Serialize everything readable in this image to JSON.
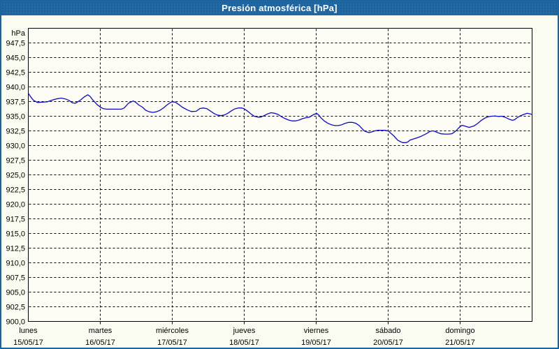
{
  "window": {
    "title": "Presión atmosférica [hPa]"
  },
  "colors": {
    "titlebar_bg": "#2069a5",
    "titlebar_text": "#ffffff",
    "window_border": "#1d649c",
    "content_bg": "#fbfcf1",
    "plot_bg": "#fdfdf6",
    "grid": "#000000",
    "axis": "#000000",
    "label_text": "#000000",
    "line": "#0a0acd"
  },
  "chart_data": {
    "type": "line",
    "title": "Presión atmosférica [hPa]",
    "ylabel": "hPa",
    "xlabel": "",
    "ylim": [
      900,
      950
    ],
    "ytick_step": 2.5,
    "ytick_labels": [
      "947,5",
      "945,0",
      "942,5",
      "940,0",
      "937,5",
      "935,0",
      "932,5",
      "930,0",
      "927,5",
      "925,0",
      "922,5",
      "920,0",
      "917,5",
      "915,0",
      "912,5",
      "910,0",
      "907,5",
      "905,0",
      "902,5",
      "900,0"
    ],
    "xlim_days": [
      0,
      7
    ],
    "grid": "dashed",
    "legend_position": "none",
    "x_categories": [
      {
        "day": "lunes",
        "date": "15/05/17"
      },
      {
        "day": "martes",
        "date": "16/05/17"
      },
      {
        "day": "miércoles",
        "date": "17/05/17"
      },
      {
        "day": "jueves",
        "date": "18/05/17"
      },
      {
        "day": "viernes",
        "date": "19/05/17"
      },
      {
        "day": "sábado",
        "date": "20/05/17"
      },
      {
        "day": "domingo",
        "date": "21/05/17"
      }
    ],
    "series": [
      {
        "name": "Presión atmosférica",
        "unit": "hPa",
        "color": "#0a0acd",
        "x_days": [
          0,
          0.034,
          0.068,
          0.126,
          0.194,
          0.263,
          0.321,
          0.389,
          0.457,
          0.515,
          0.564,
          0.613,
          0.651,
          0.681,
          0.729,
          0.778,
          0.826,
          0.856,
          0.894,
          0.924,
          0.953,
          1.001,
          1.04,
          1.089,
          1.167,
          1.293,
          1.332,
          1.361,
          1.39,
          1.429,
          1.458,
          1.488,
          1.536,
          1.585,
          1.633,
          1.682,
          1.731,
          1.779,
          1.828,
          1.877,
          1.925,
          1.964,
          1.993,
          2.042,
          2.09,
          2.139,
          2.207,
          2.265,
          2.333,
          2.382,
          2.43,
          2.479,
          2.528,
          2.576,
          2.625,
          2.674,
          2.722,
          2.771,
          2.819,
          2.868,
          2.917,
          2.965,
          2.994,
          3.043,
          3.092,
          3.14,
          3.189,
          3.228,
          3.276,
          3.325,
          3.374,
          3.422,
          3.471,
          3.519,
          3.568,
          3.617,
          3.665,
          3.714,
          3.762,
          3.811,
          3.86,
          3.908,
          3.938,
          3.967,
          4.006,
          4.035,
          4.064,
          4.112,
          4.161,
          4.21,
          4.258,
          4.307,
          4.355,
          4.404,
          4.453,
          4.501,
          4.55,
          4.598,
          4.628,
          4.667,
          4.696,
          4.735,
          4.764,
          4.813,
          4.861,
          4.958,
          5.007,
          5.036,
          5.075,
          5.104,
          5.133,
          5.172,
          5.201,
          5.25,
          5.279,
          5.299,
          5.347,
          5.396,
          5.444,
          5.493,
          5.542,
          5.571,
          5.61,
          5.639,
          5.688,
          5.736,
          5.785,
          5.833,
          5.882,
          5.911,
          5.95,
          5.999,
          6.028,
          6.057,
          6.096,
          6.125,
          6.154,
          6.193,
          6.242,
          6.29,
          6.339,
          6.387,
          6.436,
          6.484,
          6.533,
          6.582,
          6.63,
          6.679,
          6.727,
          6.757,
          6.786,
          6.834,
          6.883,
          6.931,
          6.97,
          7
        ],
        "values": [
          938.9,
          938.3,
          937.75,
          937.35,
          937.4,
          937.45,
          937.7,
          937.95,
          938.1,
          937.95,
          937.7,
          937.3,
          937.2,
          937.4,
          937.8,
          938.3,
          938.65,
          938.4,
          937.8,
          937.4,
          937.0,
          936.55,
          936.3,
          936.2,
          936.2,
          936.2,
          936.4,
          936.8,
          937.2,
          937.45,
          937.6,
          937.4,
          936.9,
          936.55,
          936.0,
          935.75,
          935.65,
          935.75,
          936.0,
          936.4,
          936.9,
          937.25,
          937.45,
          937.4,
          937.0,
          936.55,
          936.1,
          935.8,
          935.85,
          936.3,
          936.4,
          936.3,
          935.9,
          935.5,
          935.2,
          935.1,
          935.2,
          935.5,
          935.9,
          936.25,
          936.4,
          936.4,
          936.3,
          935.9,
          935.4,
          935.0,
          934.85,
          934.85,
          935.1,
          935.4,
          935.6,
          935.5,
          935.3,
          934.9,
          934.6,
          934.35,
          934.2,
          934.2,
          934.35,
          934.6,
          934.75,
          934.85,
          935.1,
          935.3,
          935.5,
          935.2,
          934.75,
          934.2,
          933.8,
          933.55,
          933.4,
          933.4,
          933.55,
          933.8,
          933.95,
          933.95,
          933.8,
          933.4,
          933.0,
          932.5,
          932.35,
          932.2,
          932.3,
          932.5,
          932.6,
          932.6,
          932.45,
          932.1,
          931.7,
          931.3,
          930.9,
          930.65,
          930.5,
          930.5,
          930.65,
          930.9,
          931.1,
          931.3,
          931.5,
          931.8,
          932.1,
          932.35,
          932.5,
          932.45,
          932.2,
          932.0,
          931.95,
          931.95,
          932.0,
          932.2,
          932.6,
          933.25,
          933.45,
          933.35,
          933.2,
          933.1,
          933.2,
          933.35,
          933.75,
          934.25,
          934.65,
          934.9,
          935.0,
          935.05,
          934.95,
          935.0,
          934.8,
          934.5,
          934.3,
          934.4,
          934.7,
          935.05,
          935.3,
          935.5,
          935.4,
          935.3
        ]
      }
    ]
  }
}
